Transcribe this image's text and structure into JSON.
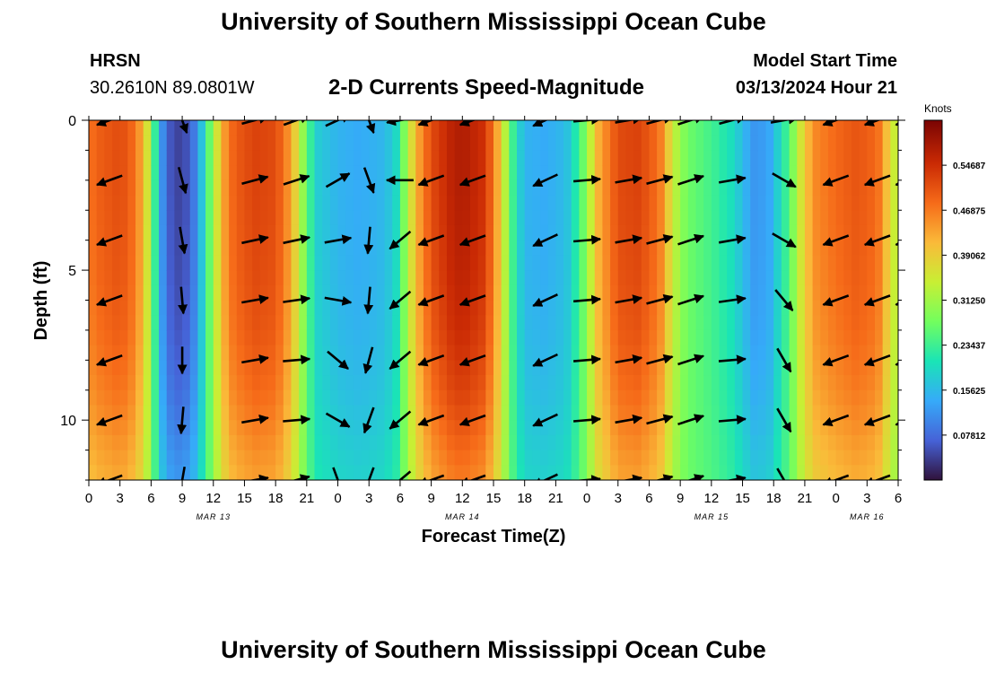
{
  "header": {
    "title": "University of Southern Mississippi Ocean Cube",
    "station_name": "HRSN",
    "station_coords": "30.2610N  89.0801W",
    "model_start_label": "Model Start Time",
    "model_start_value": "03/13/2024 Hour 21"
  },
  "footer": {
    "title": "University of Southern Mississippi Ocean Cube"
  },
  "chart_data": {
    "type": "heatmap",
    "title": "2-D Currents Speed-Magnitude",
    "xlabel": "Forecast Time(Z)",
    "ylabel": "Depth (ft)",
    "x_range_hours": [
      0,
      78
    ],
    "y_range_ft": [
      0,
      12
    ],
    "y_ticks": [
      0,
      5,
      10
    ],
    "x_tick_hours": [
      0,
      3,
      6,
      9,
      12,
      15,
      18,
      21,
      24,
      27,
      30,
      33,
      36,
      39,
      42,
      45,
      48,
      51,
      54,
      57,
      60,
      63,
      66,
      69,
      72,
      75,
      78
    ],
    "x_tick_labels": [
      "0",
      "3",
      "6",
      "9",
      "12",
      "15",
      "18",
      "21",
      "0",
      "3",
      "6",
      "9",
      "12",
      "15",
      "18",
      "21",
      "0",
      "3",
      "6",
      "9",
      "12",
      "15",
      "18",
      "21",
      "0",
      "3",
      "6"
    ],
    "date_labels": [
      {
        "text": "MAR 13",
        "hour": 12
      },
      {
        "text": "MAR 14",
        "hour": 36
      },
      {
        "text": "MAR 15",
        "hour": 60
      },
      {
        "text": "MAR 16",
        "hour": 75
      }
    ],
    "colorbar": {
      "unit": "Knots",
      "min": 0,
      "max": 0.625,
      "ticks": [
        0.546875,
        0.46875,
        0.390625,
        0.3125,
        0.234375,
        0.15625,
        0.078125
      ],
      "tick_labels": [
        "0.54687",
        "0.46875",
        "0.39062",
        "0.31250",
        "0.23437",
        "0.15625",
        "0.07812"
      ],
      "colors": [
        "#30123b",
        "#4662d7",
        "#36aaf9",
        "#1ae4b6",
        "#72fe5e",
        "#c8ef34",
        "#faba39",
        "#f66b19",
        "#ca2a04",
        "#7a0403"
      ]
    },
    "time_profile_knots": [
      [
        0,
        0.48
      ],
      [
        1,
        0.5
      ],
      [
        2,
        0.51
      ],
      [
        3,
        0.52
      ],
      [
        4,
        0.5
      ],
      [
        5,
        0.44
      ],
      [
        6,
        0.32
      ],
      [
        6.5,
        0.2
      ],
      [
        7,
        0.12
      ],
      [
        8,
        0.05
      ],
      [
        9,
        0.04
      ],
      [
        10,
        0.08
      ],
      [
        11,
        0.18
      ],
      [
        12,
        0.32
      ],
      [
        13,
        0.44
      ],
      [
        14,
        0.5
      ],
      [
        16,
        0.53
      ],
      [
        18,
        0.52
      ],
      [
        19,
        0.47
      ],
      [
        20,
        0.38
      ],
      [
        21,
        0.26
      ],
      [
        22,
        0.18
      ],
      [
        24,
        0.15
      ],
      [
        26,
        0.14
      ],
      [
        28,
        0.15
      ],
      [
        29.5,
        0.18
      ],
      [
        30.5,
        0.3
      ],
      [
        31.5,
        0.42
      ],
      [
        33,
        0.52
      ],
      [
        35,
        0.57
      ],
      [
        36,
        0.58
      ],
      [
        38,
        0.55
      ],
      [
        39,
        0.48
      ],
      [
        40,
        0.35
      ],
      [
        41,
        0.22
      ],
      [
        42,
        0.15
      ],
      [
        44,
        0.14
      ],
      [
        46,
        0.16
      ],
      [
        47,
        0.22
      ],
      [
        48,
        0.3
      ],
      [
        49,
        0.42
      ],
      [
        51,
        0.52
      ],
      [
        53,
        0.53
      ],
      [
        55,
        0.48
      ],
      [
        56,
        0.38
      ],
      [
        57,
        0.3
      ],
      [
        58,
        0.27
      ],
      [
        60,
        0.24
      ],
      [
        62,
        0.2
      ],
      [
        64,
        0.12
      ],
      [
        65.5,
        0.13
      ],
      [
        67,
        0.22
      ],
      [
        68,
        0.3
      ],
      [
        69,
        0.4
      ],
      [
        70,
        0.46
      ],
      [
        72,
        0.49
      ],
      [
        74,
        0.51
      ],
      [
        76,
        0.49
      ],
      [
        77,
        0.4
      ],
      [
        78,
        0.32
      ]
    ],
    "depth_rows_ft": [
      0,
      1,
      2,
      3,
      4,
      5,
      6,
      7,
      8,
      9,
      10,
      11,
      12
    ],
    "depth_factor": [
      1.0,
      1.0,
      1.0,
      0.99,
      0.98,
      0.97,
      0.95,
      0.93,
      0.89,
      0.85,
      0.79,
      0.72,
      0.66
    ],
    "vector_hours": [
      2,
      9,
      16,
      20,
      24,
      27,
      30,
      33,
      37,
      44,
      48,
      52,
      55,
      58,
      62,
      67,
      72,
      76,
      79
    ],
    "vector_depths_ft": [
      0,
      2,
      4,
      6,
      8,
      10,
      12
    ],
    "vector_angles_deg": [
      [
        200,
        200,
        200,
        200,
        200,
        200,
        200
      ],
      [
        290,
        285,
        280,
        275,
        270,
        265,
        260
      ],
      [
        15,
        15,
        12,
        10,
        10,
        10,
        10
      ],
      [
        20,
        18,
        12,
        8,
        5,
        5,
        15
      ],
      [
        25,
        30,
        10,
        350,
        320,
        330,
        290
      ],
      [
        290,
        290,
        265,
        265,
        255,
        250,
        250
      ],
      [
        190,
        180,
        220,
        220,
        220,
        220,
        220
      ],
      [
        200,
        200,
        200,
        200,
        200,
        200,
        200
      ],
      [
        200,
        200,
        200,
        200,
        200,
        200,
        200
      ],
      [
        205,
        205,
        205,
        205,
        205,
        205,
        205
      ],
      [
        5,
        5,
        5,
        5,
        5,
        5,
        5
      ],
      [
        10,
        10,
        10,
        10,
        10,
        10,
        10
      ],
      [
        15,
        15,
        15,
        15,
        15,
        15,
        15
      ],
      [
        18,
        18,
        18,
        18,
        18,
        18,
        18
      ],
      [
        15,
        10,
        10,
        8,
        5,
        5,
        10
      ],
      [
        10,
        330,
        330,
        310,
        300,
        300,
        300
      ],
      [
        200,
        200,
        200,
        200,
        200,
        200,
        200
      ],
      [
        200,
        200,
        200,
        200,
        200,
        200,
        200
      ],
      [
        200,
        200,
        200,
        200,
        200,
        200,
        200
      ]
    ]
  }
}
